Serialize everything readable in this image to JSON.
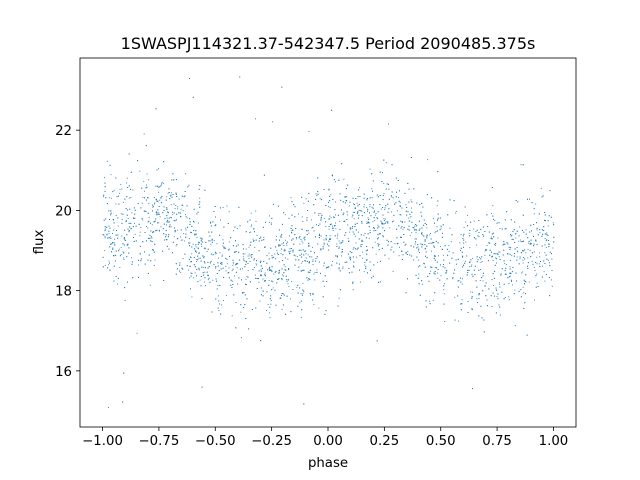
{
  "chart_data": {
    "type": "scatter",
    "title": "1SWASPJ114321.37-542347.5 Period 2090485.375s",
    "xlabel": "phase",
    "ylabel": "flux",
    "xlim": [
      -1.1,
      1.1
    ],
    "ylim": [
      14.6,
      23.8
    ],
    "xticks": [
      -1.0,
      -0.75,
      -0.5,
      -0.25,
      0.0,
      0.25,
      0.5,
      0.75,
      1.0
    ],
    "xtick_labels": [
      "−1.00",
      "−0.75",
      "−0.50",
      "−0.25",
      "0.00",
      "0.25",
      "0.50",
      "0.75",
      "1.00"
    ],
    "yticks": [
      16,
      18,
      20,
      22
    ],
    "ytick_labels": [
      "16",
      "18",
      "20",
      "22"
    ],
    "grid": false,
    "legend": "none",
    "marker_color": "#1f77b4",
    "phase_range": [
      -1.0,
      1.0
    ],
    "flux_envelope": {
      "phase": [
        -0.95,
        -0.7,
        -0.55,
        -0.35,
        -0.15,
        0.05,
        0.3,
        0.45,
        0.65,
        0.85,
        1.0
      ],
      "median": [
        19.5,
        19.9,
        18.9,
        18.6,
        18.9,
        19.4,
        19.9,
        18.9,
        18.6,
        18.9,
        19.4
      ],
      "spread": [
        1.2,
        1.0,
        1.1,
        1.2,
        1.2,
        1.2,
        1.0,
        1.1,
        1.2,
        1.2,
        1.1
      ]
    },
    "outlier_flux_range": [
      15.0,
      23.4
    ]
  }
}
